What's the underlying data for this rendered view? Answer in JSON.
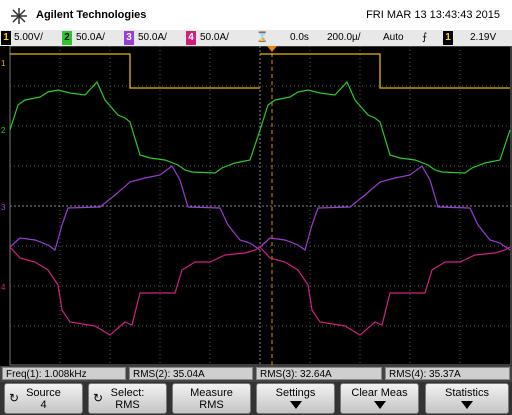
{
  "header": {
    "brand": "Agilent Technologies",
    "datetime": "FRI MAR 13 13:43:43 2015"
  },
  "status": {
    "channels": [
      {
        "number": "1",
        "scale": "5.00V/"
      },
      {
        "number": "2",
        "scale": "50.0A/"
      },
      {
        "number": "3",
        "scale": "50.0A/"
      },
      {
        "number": "4",
        "scale": "50.0A/"
      }
    ],
    "time_offset": "0.0s",
    "time_scale": "200.0µ/",
    "trigger_mode": "Auto",
    "trigger_source": "1",
    "trigger_level": "2.19V"
  },
  "measurements": [
    {
      "label": "Freq(1):",
      "value": "1.008kHz"
    },
    {
      "label": "RMS(2):",
      "value": "35.04A"
    },
    {
      "label": "RMS(3):",
      "value": "32.64A"
    },
    {
      "label": "RMS(4):",
      "value": "35.37A"
    }
  ],
  "softkeys": [
    {
      "label": "Source",
      "value": "4"
    },
    {
      "label": "Select:",
      "value": "RMS"
    },
    {
      "label": "Measure",
      "value": "RMS"
    },
    {
      "label": "Settings"
    },
    {
      "label": "Clear Meas"
    },
    {
      "label": "Statistics"
    }
  ]
}
